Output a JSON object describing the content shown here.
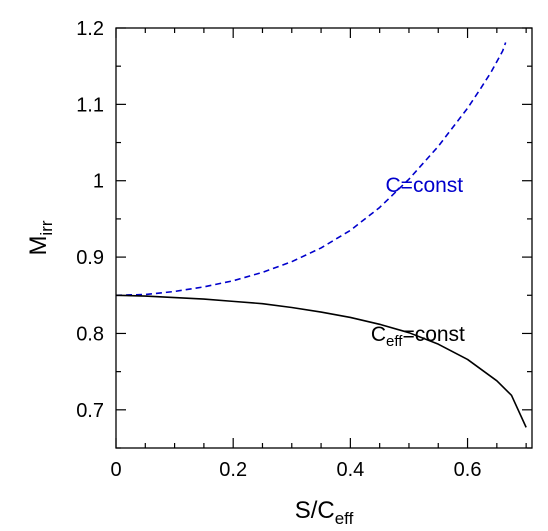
{
  "chart_data": {
    "type": "line",
    "title": "",
    "xlabel": {
      "base": "S/C",
      "sub": "eff"
    },
    "ylabel": {
      "base": "M",
      "sub": "irr"
    },
    "xlim": [
      0,
      0.71
    ],
    "ylim": [
      0.65,
      1.2
    ],
    "x_ticks": [
      0,
      0.2,
      0.4,
      0.6
    ],
    "x_tick_labels": [
      "0",
      "0.2",
      "0.4",
      "0.6"
    ],
    "x_minor_step": 0.05,
    "y_ticks": [
      0.7,
      0.8,
      0.9,
      1.0,
      1.1,
      1.2
    ],
    "y_tick_labels": [
      "0.7",
      "0.8",
      "0.9",
      "1",
      "1.1",
      "1.2"
    ],
    "y_minor_step": 0.05,
    "grid": false,
    "legend": "none",
    "series": [
      {
        "name": "C=const",
        "color": "#0000cc",
        "dash": "dashed",
        "x": [
          0,
          0.05,
          0.1,
          0.15,
          0.2,
          0.25,
          0.3,
          0.35,
          0.4,
          0.45,
          0.5,
          0.55,
          0.6,
          0.62,
          0.64,
          0.66,
          0.665
        ],
        "y": [
          0.85,
          0.851,
          0.855,
          0.861,
          0.869,
          0.88,
          0.894,
          0.912,
          0.935,
          0.965,
          1.002,
          1.045,
          1.095,
          1.118,
          1.142,
          1.17,
          1.181
        ]
      },
      {
        "name": "C_eff=const",
        "color": "#000000",
        "dash": "solid",
        "x": [
          0,
          0.05,
          0.1,
          0.15,
          0.2,
          0.25,
          0.3,
          0.35,
          0.4,
          0.45,
          0.5,
          0.55,
          0.6,
          0.65,
          0.675,
          0.7
        ],
        "y": [
          0.85,
          0.849,
          0.847,
          0.845,
          0.842,
          0.839,
          0.834,
          0.828,
          0.821,
          0.812,
          0.801,
          0.786,
          0.766,
          0.738,
          0.719,
          0.677
        ]
      }
    ],
    "annotations": [
      {
        "text": "C=const",
        "color": "#0000cc",
        "x": 0.46,
        "y": 0.985
      },
      {
        "base": "C",
        "sub": "eff",
        "rest": "=const",
        "color": "#000000",
        "x": 0.435,
        "y": 0.79
      }
    ]
  }
}
